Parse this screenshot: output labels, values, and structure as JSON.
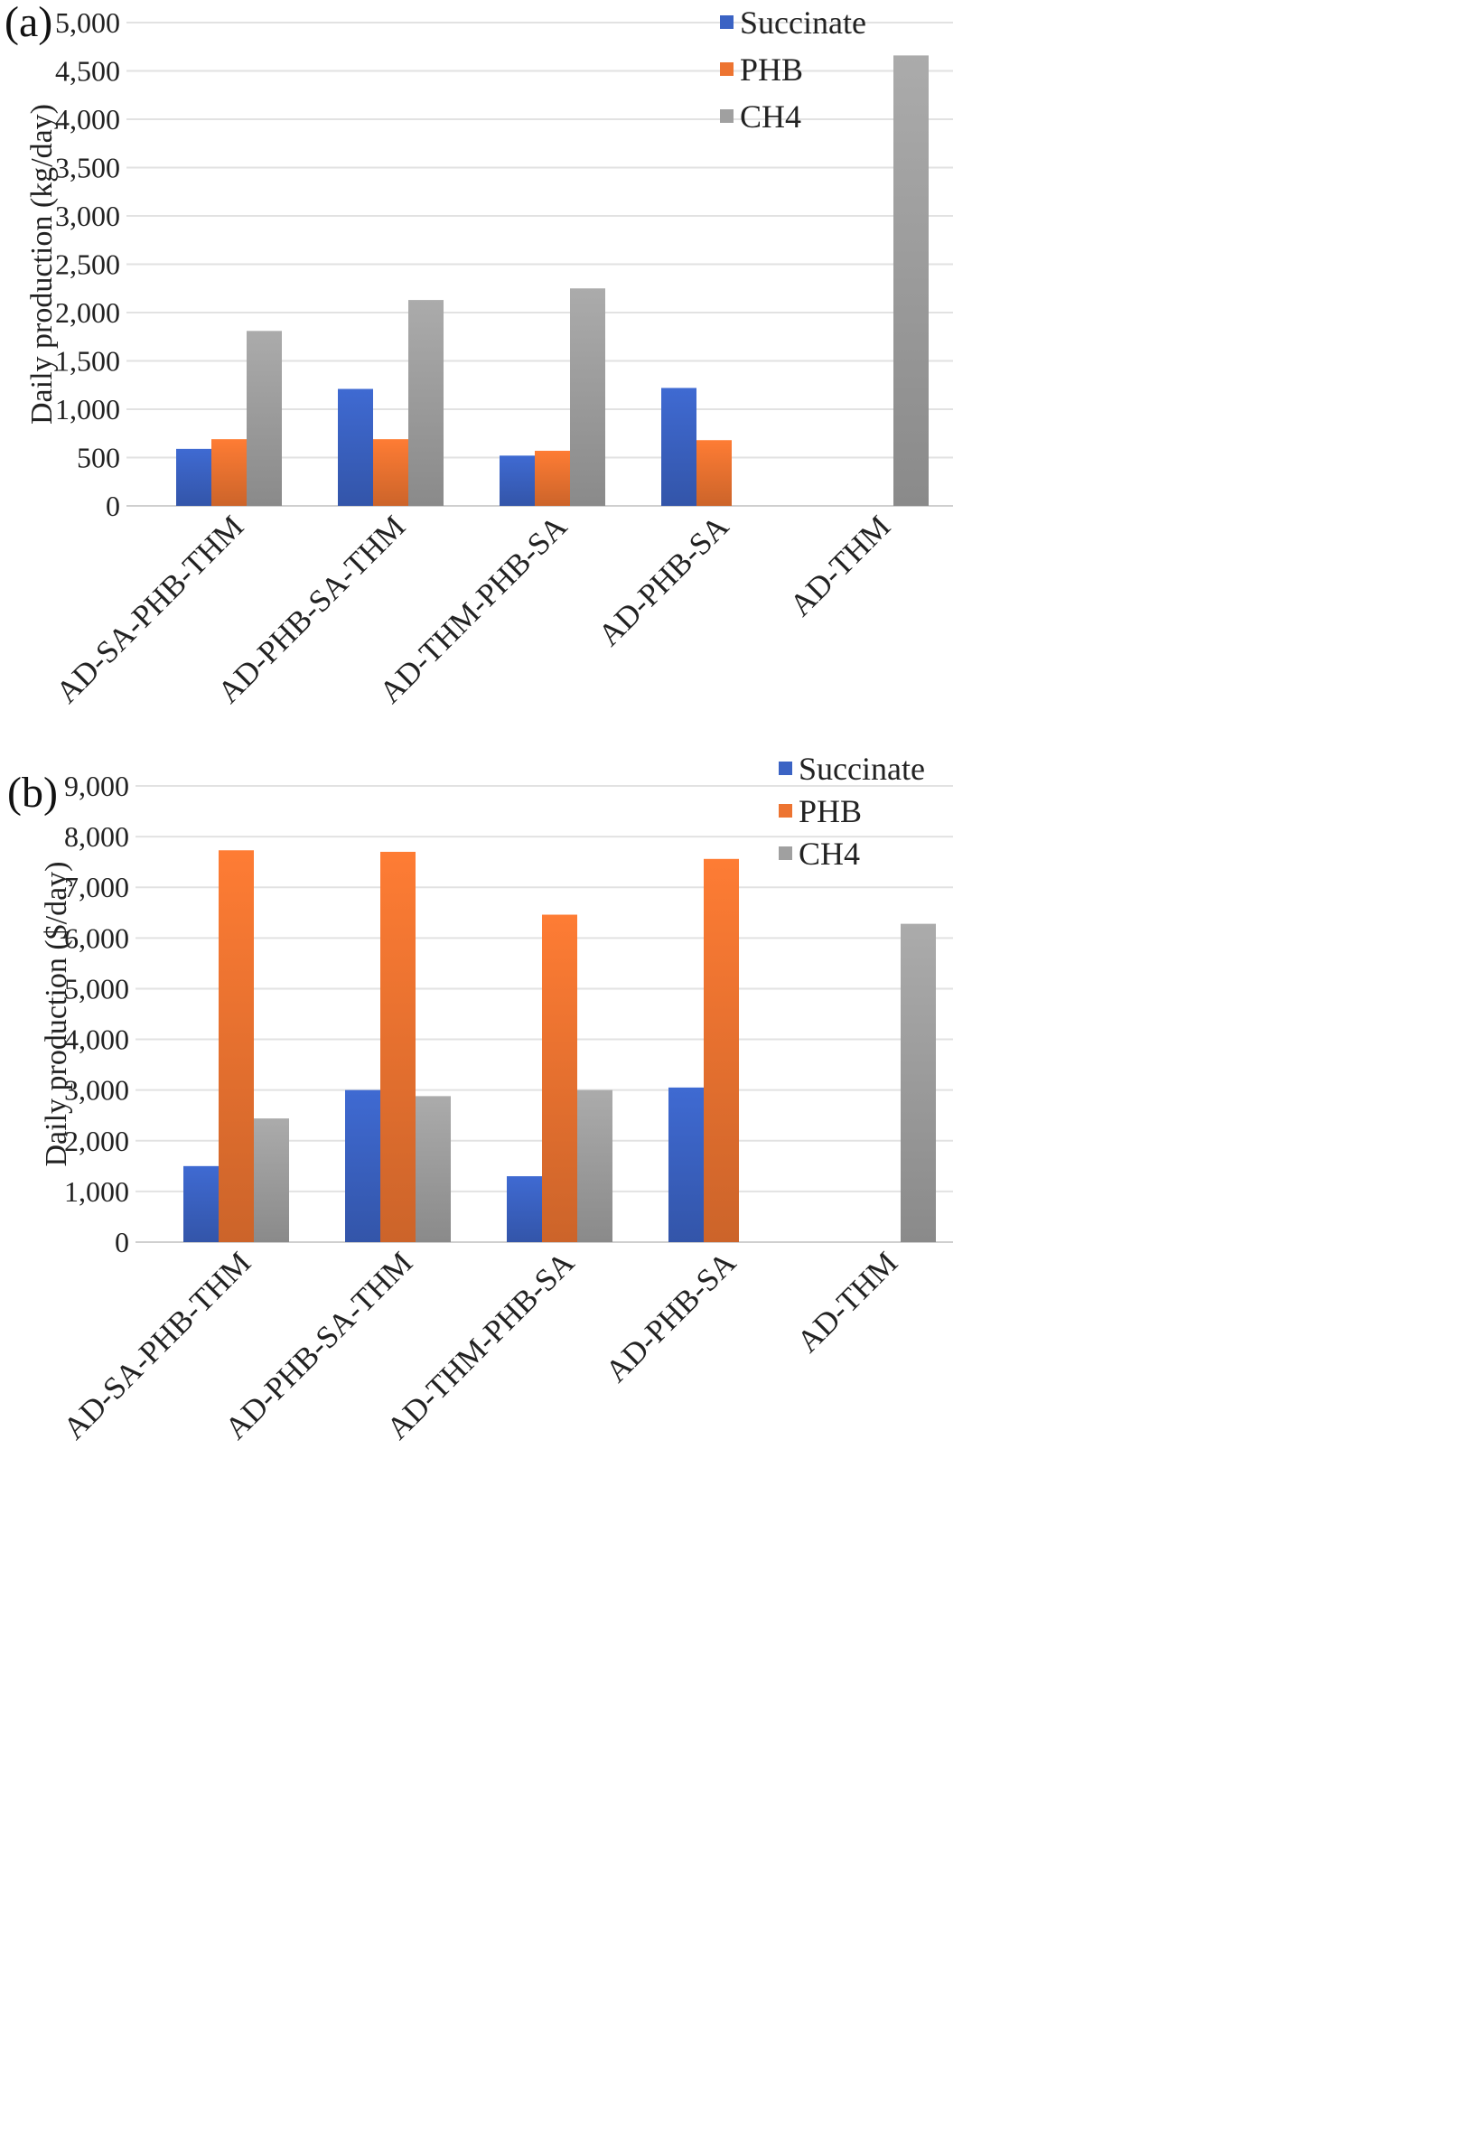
{
  "chart_data": [
    {
      "type": "bar",
      "panel_label": "(a)",
      "categories": [
        "AD-SA-PHB-THM",
        "AD-PHB-SA-THM",
        "AD-THM-PHB-SA",
        "AD-PHB-SA",
        "AD-THM"
      ],
      "series": [
        {
          "name": "Succinate",
          "color": "#3b63c4",
          "values": [
            590,
            1210,
            520,
            1220,
            0
          ]
        },
        {
          "name": "PHB",
          "color": "#ed7431",
          "values": [
            690,
            690,
            570,
            680,
            0
          ]
        },
        {
          "name": "CH4",
          "color": "#a0a0a0",
          "values": [
            1810,
            2130,
            2250,
            0,
            4660
          ]
        }
      ],
      "ylabel": "Daily production (kg/day)",
      "ylim": [
        0,
        5000
      ],
      "yticks": [
        "0",
        "500",
        "1,000",
        "1,500",
        "2,000",
        "2,500",
        "3,000",
        "3,500",
        "4,000",
        "4,500",
        "5,000"
      ],
      "grid": true,
      "legend_position": "top-right"
    },
    {
      "type": "bar",
      "panel_label": "(b)",
      "categories": [
        "AD-SA-PHB-THM",
        "AD-PHB-SA-THM",
        "AD-THM-PHB-SA",
        "AD-PHB-SA",
        "AD-THM"
      ],
      "series": [
        {
          "name": "Succinate",
          "color": "#3b63c4",
          "values": [
            1500,
            3000,
            1300,
            3050,
            0
          ]
        },
        {
          "name": "PHB",
          "color": "#ed7431",
          "values": [
            7730,
            7700,
            6460,
            7560,
            0
          ]
        },
        {
          "name": "CH4",
          "color": "#a0a0a0",
          "values": [
            2440,
            2880,
            3000,
            0,
            6280
          ]
        }
      ],
      "ylabel": "Daily production ($/day)",
      "ylim": [
        0,
        9000
      ],
      "yticks": [
        "0",
        "1,000",
        "2,000",
        "3,000",
        "4,000",
        "5,000",
        "6,000",
        "7,000",
        "8,000",
        "9,000"
      ],
      "grid": true,
      "legend_position": "top-right"
    }
  ]
}
